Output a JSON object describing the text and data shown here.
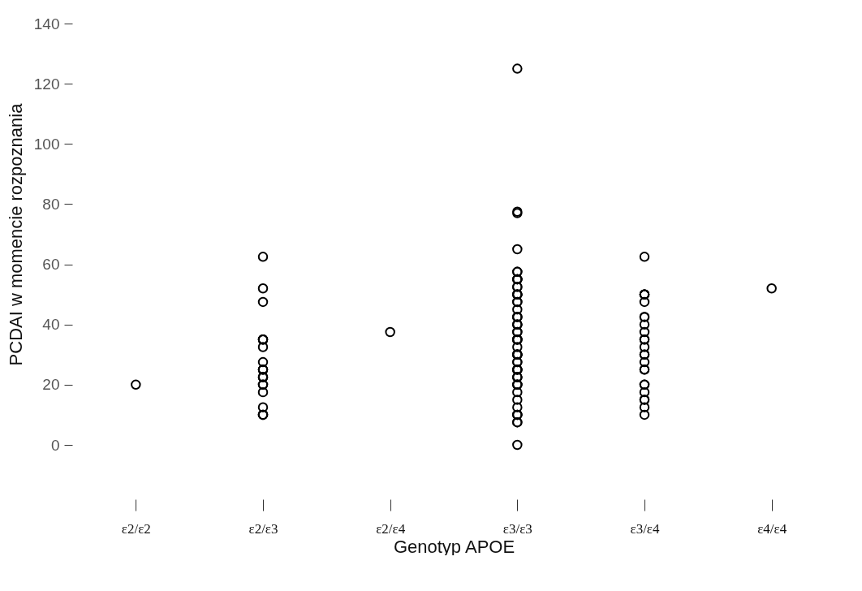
{
  "chart_data": {
    "type": "scatter",
    "xlabel": "Genotyp APOE",
    "ylabel": "PCDAI w momencie rozpoznania",
    "categories": [
      "ε2/ε2",
      "ε2/ε3",
      "ε2/ε4",
      "ε3/ε3",
      "ε3/ε4",
      "ε4/ε4"
    ],
    "ylim": [
      0,
      140
    ],
    "yticks": [
      0,
      20,
      40,
      60,
      80,
      100,
      120,
      140
    ],
    "grid": false,
    "legend": false,
    "marker": "circle",
    "series": [
      {
        "color": "#000000",
        "x": [
          "ε2/ε2",
          "ε2/ε3",
          "ε2/ε3",
          "ε2/ε3",
          "ε2/ε3",
          "ε2/ε3",
          "ε2/ε3",
          "ε2/ε3",
          "ε2/ε3",
          "ε2/ε3",
          "ε2/ε3",
          "ε2/ε3",
          "ε2/ε3",
          "ε2/ε3",
          "ε2/ε3",
          "ε2/ε3",
          "ε2/ε3",
          "ε2/ε3",
          "ε2/ε3",
          "ε2/ε3",
          "ε2/ε3",
          "ε2/ε3",
          "ε2/ε4",
          "ε3/ε3",
          "ε3/ε3",
          "ε3/ε3",
          "ε3/ε3",
          "ε3/ε3",
          "ε3/ε3",
          "ε3/ε3",
          "ε3/ε3",
          "ε3/ε3",
          "ε3/ε3",
          "ε3/ε3",
          "ε3/ε3",
          "ε3/ε3",
          "ε3/ε3",
          "ε3/ε3",
          "ε3/ε3",
          "ε3/ε3",
          "ε3/ε3",
          "ε3/ε3",
          "ε3/ε3",
          "ε3/ε3",
          "ε3/ε3",
          "ε3/ε3",
          "ε3/ε3",
          "ε3/ε3",
          "ε3/ε3",
          "ε3/ε3",
          "ε3/ε3",
          "ε3/ε3",
          "ε3/ε3",
          "ε3/ε3",
          "ε3/ε3",
          "ε3/ε3",
          "ε3/ε3",
          "ε3/ε3",
          "ε3/ε3",
          "ε3/ε3",
          "ε3/ε3",
          "ε3/ε3",
          "ε3/ε3",
          "ε3/ε3",
          "ε3/ε3",
          "ε3/ε3",
          "ε3/ε3",
          "ε3/ε3",
          "ε3/ε3",
          "ε3/ε3",
          "ε3/ε3",
          "ε3/ε3",
          "ε3/ε3",
          "ε3/ε3",
          "ε3/ε3",
          "ε3/ε3",
          "ε3/ε3",
          "ε3/ε3",
          "ε3/ε3",
          "ε3/ε3",
          "ε3/ε3",
          "ε3/ε4",
          "ε3/ε4",
          "ε3/ε4",
          "ε3/ε4",
          "ε3/ε4",
          "ε3/ε4",
          "ε3/ε4",
          "ε3/ε4",
          "ε3/ε4",
          "ε3/ε4",
          "ε3/ε4",
          "ε3/ε4",
          "ε3/ε4",
          "ε3/ε4",
          "ε3/ε4",
          "ε3/ε4",
          "ε3/ε4",
          "ε3/ε4",
          "ε3/ε4",
          "ε3/ε4",
          "ε3/ε4",
          "ε3/ε4",
          "ε3/ε4",
          "ε3/ε4",
          "ε3/ε4",
          "ε4/ε4"
        ],
        "values": [
          20,
          62.5,
          52,
          47.5,
          35,
          35,
          35,
          32.5,
          27.5,
          25,
          25,
          25,
          22.5,
          22.5,
          22.5,
          20,
          20,
          17.5,
          12.5,
          10,
          10,
          10,
          37.5,
          125,
          77.5,
          77,
          65,
          57.5,
          57.5,
          55,
          55,
          55,
          55,
          52.5,
          52.5,
          50,
          50,
          50,
          50,
          47.5,
          47.5,
          45,
          42.5,
          42.5,
          42.5,
          40,
          40,
          40,
          37.5,
          37.5,
          35,
          35,
          35,
          35,
          32.5,
          30,
          30,
          30,
          30,
          30,
          27.5,
          27.5,
          25,
          25,
          25,
          25,
          22.5,
          22.5,
          22.5,
          20,
          20,
          20,
          17.5,
          15,
          12.5,
          10,
          10,
          10,
          7.5,
          7.5,
          0,
          62.5,
          50,
          50,
          50,
          50,
          47.5,
          42.5,
          42.5,
          40,
          37.5,
          35,
          35,
          32.5,
          30,
          30,
          27.5,
          25,
          25,
          20,
          20,
          17.5,
          15,
          15,
          12.5,
          10,
          52
        ]
      }
    ]
  }
}
